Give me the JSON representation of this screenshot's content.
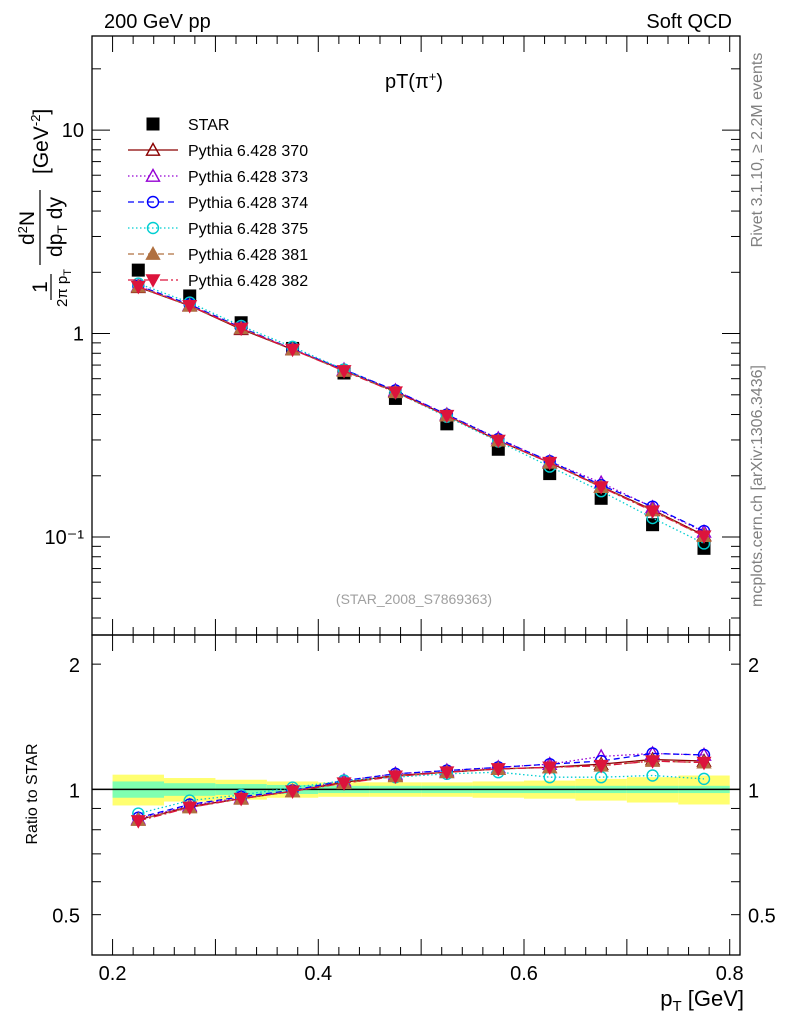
{
  "header": {
    "left": "200 GeV pp",
    "right": "Soft QCD"
  },
  "side_text": {
    "rivet": "Rivet 3.1.10, ≥ 2.2M events",
    "mcplots": "mcplots.cern.ch [arXiv:1306.3436]"
  },
  "colors": {
    "STAR": "#000000",
    "p370": "#8b0000",
    "p373": "#9400d3",
    "p374": "#0000ff",
    "p375": "#00ced1",
    "p381": "#b07040",
    "p382": "#dc143c",
    "band_inner": "#7fffb0",
    "band_outer": "#ffff70"
  },
  "chart_data": [
    {
      "type": "scatter",
      "panel": "main",
      "title": "pT(π⁺)",
      "watermark": "(STAR_2008_S7869363)",
      "xlabel": "p_T [GeV]",
      "ylabel": "1/(2π p_T) d²N/(dp_T dy) [GeV⁻²]",
      "xlim": [
        0.18,
        0.81
      ],
      "ylim": [
        0.033,
        29
      ],
      "yscale": "log",
      "y_tick_labels": [
        "10⁻¹",
        "1",
        "10"
      ],
      "x": [
        0.225,
        0.275,
        0.325,
        0.375,
        0.425,
        0.475,
        0.525,
        0.575,
        0.625,
        0.675,
        0.725,
        0.775
      ],
      "legend_position": "top-left",
      "series": [
        {
          "name": "STAR",
          "key": "STAR",
          "marker": "square",
          "line": "none",
          "values": [
            2.05,
            1.53,
            1.13,
            0.845,
            0.64,
            0.48,
            0.36,
            0.27,
            0.205,
            0.155,
            0.115,
            0.088
          ]
        },
        {
          "name": "Pythia 6.428 370",
          "key": "p370",
          "marker": "triangle-open",
          "line": "solid",
          "values": [
            1.69,
            1.37,
            1.05,
            0.835,
            0.66,
            0.52,
            0.395,
            0.298,
            0.232,
            0.177,
            0.136,
            0.102
          ]
        },
        {
          "name": "Pythia 6.428 373",
          "key": "p373",
          "marker": "triangle-open",
          "line": "dotted",
          "values": [
            1.71,
            1.38,
            1.06,
            0.84,
            0.665,
            0.525,
            0.4,
            0.305,
            0.235,
            0.185,
            0.14,
            0.106
          ]
        },
        {
          "name": "Pythia 6.428 374",
          "key": "p374",
          "marker": "circle-open",
          "line": "dashed",
          "values": [
            1.72,
            1.39,
            1.07,
            0.84,
            0.665,
            0.525,
            0.4,
            0.303,
            0.236,
            0.18,
            0.141,
            0.107
          ]
        },
        {
          "name": "Pythia 6.428 375",
          "key": "p375",
          "marker": "circle-open",
          "line": "dotted",
          "values": [
            1.76,
            1.42,
            1.09,
            0.86,
            0.665,
            0.515,
            0.39,
            0.295,
            0.222,
            0.168,
            0.124,
            0.093
          ]
        },
        {
          "name": "Pythia 6.428 381",
          "key": "p381",
          "marker": "triangle-filled",
          "line": "dashed",
          "values": [
            1.7,
            1.37,
            1.06,
            0.835,
            0.655,
            0.515,
            0.395,
            0.298,
            0.232,
            0.176,
            0.135,
            0.101
          ]
        },
        {
          "name": "Pythia 6.428 382",
          "key": "p382",
          "marker": "triangledown-filled",
          "line": "dashdot",
          "values": [
            1.7,
            1.37,
            1.06,
            0.835,
            0.655,
            0.515,
            0.395,
            0.298,
            0.232,
            0.176,
            0.134,
            0.101
          ]
        }
      ]
    },
    {
      "type": "scatter",
      "panel": "ratio",
      "xlabel": "p_T [GeV]",
      "ylabel": "Ratio to STAR",
      "xlim": [
        0.18,
        0.81
      ],
      "ylim": [
        0.4,
        2.35
      ],
      "yscale": "log",
      "x_ticks": [
        0.2,
        0.4,
        0.6,
        0.8
      ],
      "x_tick_labels": [
        "0.2",
        "0.4",
        "0.6",
        "0.8"
      ],
      "y_ticks": [
        0.5,
        1,
        2
      ],
      "y_tick_labels": [
        "0.5",
        "1",
        "2"
      ],
      "reference_line": 1,
      "x": [
        0.225,
        0.275,
        0.325,
        0.375,
        0.425,
        0.475,
        0.525,
        0.575,
        0.625,
        0.675,
        0.725,
        0.775
      ],
      "band_edges": [
        0.2,
        0.25,
        0.3,
        0.35,
        0.4,
        0.45,
        0.5,
        0.55,
        0.6,
        0.65,
        0.7,
        0.75,
        0.8
      ],
      "band_inner": [
        0.045,
        0.035,
        0.03,
        0.025,
        0.02,
        0.02,
        0.02,
        0.02,
        0.02,
        0.02,
        0.02,
        0.02
      ],
      "band_outer": [
        0.085,
        0.065,
        0.055,
        0.045,
        0.04,
        0.04,
        0.04,
        0.045,
        0.05,
        0.06,
        0.07,
        0.08
      ],
      "series": [
        {
          "name": "Pythia 6.428 370",
          "key": "p370",
          "marker": "triangle-open",
          "line": "solid",
          "values": [
            0.845,
            0.91,
            0.95,
            0.99,
            1.04,
            1.08,
            1.1,
            1.12,
            1.13,
            1.15,
            1.18,
            1.17
          ]
        },
        {
          "name": "Pythia 6.428 373",
          "key": "p373",
          "marker": "triangle-open",
          "line": "dotted",
          "values": [
            0.85,
            0.915,
            0.955,
            0.99,
            1.05,
            1.09,
            1.11,
            1.13,
            1.15,
            1.2,
            1.22,
            1.21
          ]
        },
        {
          "name": "Pythia 6.428 374",
          "key": "p374",
          "marker": "circle-open",
          "line": "dashed",
          "values": [
            0.855,
            0.92,
            0.96,
            0.995,
            1.05,
            1.09,
            1.11,
            1.13,
            1.15,
            1.17,
            1.22,
            1.21
          ]
        },
        {
          "name": "Pythia 6.428 375",
          "key": "p375",
          "marker": "circle-open",
          "line": "dotted",
          "values": [
            0.875,
            0.94,
            0.97,
            1.01,
            1.05,
            1.07,
            1.09,
            1.1,
            1.07,
            1.07,
            1.08,
            1.06
          ]
        },
        {
          "name": "Pythia 6.428 381",
          "key": "p381",
          "marker": "triangle-filled",
          "line": "dashed",
          "values": [
            0.845,
            0.905,
            0.95,
            0.99,
            1.035,
            1.075,
            1.1,
            1.12,
            1.13,
            1.14,
            1.17,
            1.16
          ]
        },
        {
          "name": "Pythia 6.428 382",
          "key": "p382",
          "marker": "triangledown-filled",
          "line": "dashdot",
          "values": [
            0.84,
            0.905,
            0.95,
            0.99,
            1.035,
            1.075,
            1.1,
            1.12,
            1.13,
            1.14,
            1.17,
            1.16
          ]
        }
      ]
    }
  ]
}
